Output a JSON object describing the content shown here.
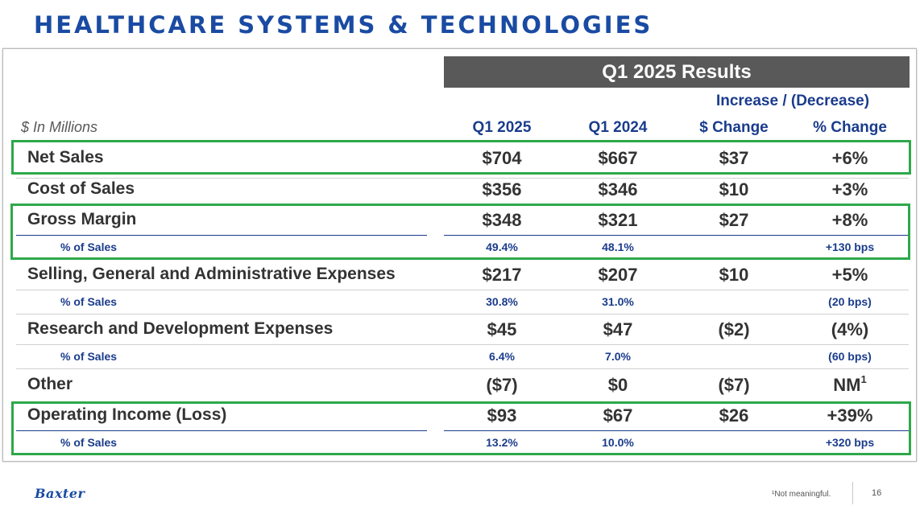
{
  "title": "HEALTHCARE SYSTEMS & TECHNOLOGIES",
  "results_header": "Q1 2025 Results",
  "increase_decrease": "Increase / (Decrease)",
  "units": "$ In Millions",
  "columns": [
    "Q1 2025",
    "Q1 2024",
    "$ Change",
    "% Change"
  ],
  "rows": [
    {
      "label": "Net Sales",
      "q1_2025": "$704",
      "q1_2024": "$667",
      "change_usd": "$37",
      "change_pct": "+6%"
    },
    {
      "label": "Cost of Sales",
      "q1_2025": "$356",
      "q1_2024": "$346",
      "change_usd": "$10",
      "change_pct": "+3%"
    },
    {
      "label": "Gross Margin",
      "q1_2025": "$348",
      "q1_2024": "$321",
      "change_usd": "$27",
      "change_pct": "+8%"
    },
    {
      "label": "% of Sales",
      "q1_2025": "49.4%",
      "q1_2024": "48.1%",
      "change_usd": "",
      "change_pct": "+130 bps"
    },
    {
      "label": "Selling, General and Administrative Expenses",
      "q1_2025": "$217",
      "q1_2024": "$207",
      "change_usd": "$10",
      "change_pct": "+5%"
    },
    {
      "label": "% of Sales",
      "q1_2025": "30.8%",
      "q1_2024": "31.0%",
      "change_usd": "",
      "change_pct": "(20 bps)"
    },
    {
      "label": "Research and Development Expenses",
      "q1_2025": "$45",
      "q1_2024": "$47",
      "change_usd": "($2)",
      "change_pct": "(4%)"
    },
    {
      "label": "% of Sales",
      "q1_2025": "6.4%",
      "q1_2024": "7.0%",
      "change_usd": "",
      "change_pct": "(60 bps)"
    },
    {
      "label": "Other",
      "q1_2025": "($7)",
      "q1_2024": "$0",
      "change_usd": "($7)",
      "change_pct": "NM",
      "change_pct_sup": "1"
    },
    {
      "label": "Operating Income (Loss)",
      "q1_2025": "$93",
      "q1_2024": "$67",
      "change_usd": "$26",
      "change_pct": "+39%"
    },
    {
      "label": "% of Sales",
      "q1_2025": "13.2%",
      "q1_2024": "10.0%",
      "change_usd": "",
      "change_pct": "+320 bps"
    }
  ],
  "footnote": "¹Not meaningful.",
  "logo_text": "Baxter",
  "page_number": "16",
  "colors": {
    "title": "#1a4ba3",
    "header_bg": "#595959",
    "highlight": "#2ea84a",
    "sub_text": "#1a3c8c"
  }
}
